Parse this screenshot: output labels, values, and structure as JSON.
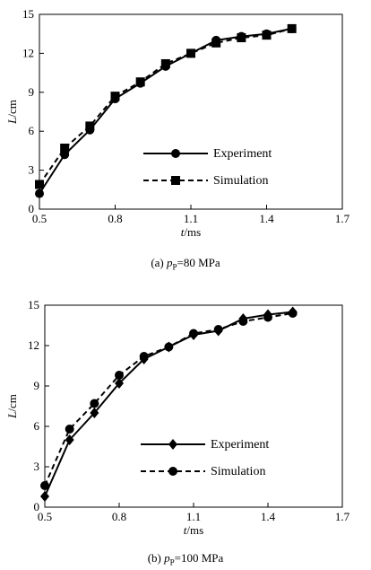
{
  "chart_data": [
    {
      "type": "line",
      "xlabel": "t/ms",
      "ylabel": "L/cm",
      "xlim": [
        0.5,
        1.7
      ],
      "ylim": [
        0,
        15
      ],
      "xticks": [
        "0.5",
        "0.8",
        "1.1",
        "1.4",
        "1.7"
      ],
      "yticks": [
        "0",
        "3",
        "6",
        "9",
        "12",
        "15"
      ],
      "grid": false,
      "legend_position": "lower-right",
      "series": [
        {
          "name": "Experiment",
          "style": "solid",
          "marker": "circle",
          "x": [
            0.5,
            0.6,
            0.7,
            0.8,
            0.9,
            1.0,
            1.1,
            1.2,
            1.3,
            1.4,
            1.5
          ],
          "y": [
            1.2,
            4.2,
            6.1,
            8.5,
            9.7,
            11.0,
            12.0,
            13.0,
            13.3,
            13.5,
            13.9
          ]
        },
        {
          "name": "Simulation",
          "style": "dashed",
          "marker": "square",
          "x": [
            0.5,
            0.6,
            0.7,
            0.8,
            0.9,
            1.0,
            1.1,
            1.2,
            1.3,
            1.4,
            1.5
          ],
          "y": [
            1.9,
            4.7,
            6.4,
            8.7,
            9.8,
            11.2,
            12.0,
            12.8,
            13.2,
            13.4,
            13.9
          ]
        }
      ],
      "caption": {
        "prefix": "(a) ",
        "var": "p",
        "sub": "P",
        "rest": "=80 MPa"
      }
    },
    {
      "type": "line",
      "xlabel": "t/ms",
      "ylabel": "L/cm",
      "xlim": [
        0.5,
        1.7
      ],
      "ylim": [
        0,
        15
      ],
      "xticks": [
        "0.5",
        "0.8",
        "1.1",
        "1.4",
        "1.7"
      ],
      "yticks": [
        "0",
        "3",
        "6",
        "9",
        "12",
        "15"
      ],
      "grid": false,
      "legend_position": "lower-right",
      "series": [
        {
          "name": "Experiment",
          "style": "solid",
          "marker": "diamond",
          "x": [
            0.5,
            0.6,
            0.7,
            0.8,
            0.9,
            1.0,
            1.1,
            1.2,
            1.3,
            1.4,
            1.5
          ],
          "y": [
            0.8,
            5.0,
            7.0,
            9.2,
            11.0,
            11.9,
            12.8,
            13.1,
            14.0,
            14.3,
            14.5
          ]
        },
        {
          "name": "Simulation",
          "style": "dashed",
          "marker": "circle",
          "x": [
            0.5,
            0.6,
            0.7,
            0.8,
            0.9,
            1.0,
            1.1,
            1.2,
            1.3,
            1.4,
            1.5
          ],
          "y": [
            1.6,
            5.8,
            7.7,
            9.8,
            11.2,
            11.9,
            12.9,
            13.2,
            13.8,
            14.1,
            14.4
          ]
        }
      ],
      "caption": {
        "prefix": "(b) ",
        "var": "p",
        "sub": "P",
        "rest": "=100 MPa"
      }
    }
  ]
}
